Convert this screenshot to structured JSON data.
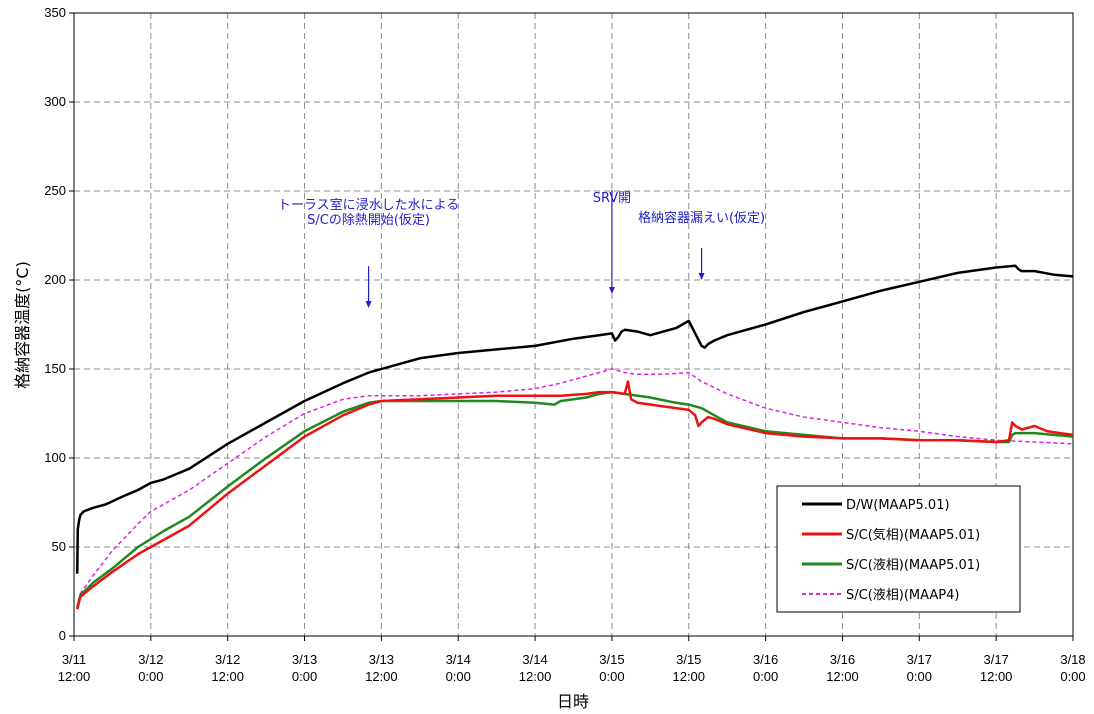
{
  "chart_data": {
    "type": "line",
    "title": "",
    "xlabel": "日時",
    "ylabel": "格納容器温度(°C)",
    "ylim": [
      0,
      350
    ],
    "yticks": [
      0,
      50,
      100,
      150,
      200,
      250,
      300,
      350
    ],
    "xlim_hours": [
      0,
      156
    ],
    "xticks": [
      {
        "line1": "3/11",
        "line2": "12:00"
      },
      {
        "line1": "3/12",
        "line2": "0:00"
      },
      {
        "line1": "3/12",
        "line2": "12:00"
      },
      {
        "line1": "3/13",
        "line2": "0:00"
      },
      {
        "line1": "3/13",
        "line2": "12:00"
      },
      {
        "line1": "3/14",
        "line2": "0:00"
      },
      {
        "line1": "3/14",
        "line2": "12:00"
      },
      {
        "line1": "3/15",
        "line2": "0:00"
      },
      {
        "line1": "3/15",
        "line2": "12:00"
      },
      {
        "line1": "3/16",
        "line2": "0:00"
      },
      {
        "line1": "3/16",
        "line2": "12:00"
      },
      {
        "line1": "3/17",
        "line2": "0:00"
      },
      {
        "line1": "3/17",
        "line2": "12:00"
      },
      {
        "line1": "3/18",
        "line2": "0:00"
      }
    ],
    "grid": true,
    "legend_position": "bottom-right",
    "series": [
      {
        "name": "D/W(MAAP5.01)",
        "color": "#000000",
        "style": "solid",
        "x": [
          0.5,
          0.6,
          0.8,
          1,
          1.5,
          3,
          5,
          8,
          10,
          12,
          14,
          16,
          18,
          24,
          30,
          36,
          42,
          46,
          50,
          54,
          60,
          66,
          72,
          78,
          80,
          82,
          84,
          84.5,
          85,
          85.5,
          86,
          88,
          90,
          92,
          94,
          96,
          98,
          98.5,
          99,
          100,
          102,
          108,
          114,
          120,
          126,
          132,
          138,
          144,
          147,
          147.5,
          148,
          150,
          153,
          156
        ],
        "y": [
          35,
          60,
          65,
          68,
          70,
          72,
          74,
          79,
          82,
          86,
          88,
          91,
          94,
          108,
          120,
          132,
          142,
          148,
          152,
          156,
          159,
          161,
          163,
          167,
          168,
          169,
          170,
          166,
          168,
          171,
          172,
          171,
          169,
          171,
          173,
          177,
          163,
          162,
          164,
          166,
          169,
          175,
          182,
          188,
          194,
          199,
          204,
          207,
          208,
          206,
          205,
          205,
          203,
          202
        ]
      },
      {
        "name": "S/C(気相)(MAAP5.01)",
        "color": "#ee1111",
        "style": "solid",
        "x": [
          0.5,
          1,
          3,
          6,
          10,
          14,
          18,
          24,
          30,
          36,
          42,
          46,
          48,
          54,
          60,
          66,
          72,
          76,
          80,
          82,
          84,
          86,
          86.5,
          87,
          88,
          92,
          96,
          97,
          97.5,
          98,
          99,
          100,
          102,
          108,
          114,
          120,
          126,
          132,
          138,
          144,
          146,
          146.5,
          147,
          148,
          150,
          152,
          154,
          156
        ],
        "y": [
          15,
          22,
          28,
          36,
          46,
          54,
          62,
          80,
          96,
          112,
          124,
          130,
          132,
          133,
          134,
          135,
          135,
          135,
          136,
          137,
          137,
          136,
          143,
          133,
          131,
          129,
          127,
          124,
          118,
          120,
          123,
          122,
          119,
          114,
          112,
          111,
          111,
          110,
          110,
          109,
          110,
          120,
          118,
          116,
          118,
          115,
          114,
          113
        ]
      },
      {
        "name": "S/C(液相)(MAAP5.01)",
        "color": "#1e8a1e",
        "style": "solid",
        "x": [
          0.5,
          1,
          3,
          6,
          10,
          14,
          18,
          24,
          30,
          36,
          42,
          46,
          48,
          54,
          60,
          66,
          72,
          75,
          76,
          80,
          82,
          84,
          86,
          90,
          94,
          96,
          98,
          100,
          102,
          108,
          114,
          120,
          126,
          132,
          138,
          144,
          146,
          146.5,
          147,
          150,
          153,
          156
        ],
        "y": [
          16,
          23,
          30,
          38,
          50,
          59,
          67,
          84,
          100,
          115,
          126,
          131,
          132,
          132,
          132,
          132,
          131,
          130,
          132,
          134,
          136,
          137,
          136,
          134,
          131,
          130,
          128,
          124,
          120,
          115,
          113,
          111,
          111,
          110,
          110,
          109,
          109,
          113,
          114,
          114,
          113,
          112
        ]
      },
      {
        "name": "S/C(液相)(MAAP4)",
        "color": "#e020e0",
        "style": "dashed",
        "x": [
          0.5,
          1,
          3,
          6,
          10,
          12,
          14,
          18,
          24,
          30,
          36,
          42,
          46,
          48,
          54,
          60,
          66,
          72,
          76,
          80,
          82,
          84,
          86,
          88,
          92,
          96,
          98,
          102,
          108,
          114,
          120,
          126,
          132,
          138,
          144,
          150,
          156
        ],
        "y": [
          16,
          24,
          34,
          48,
          63,
          70,
          74,
          82,
          97,
          112,
          125,
          133,
          135,
          135,
          135,
          136,
          137,
          139,
          142,
          146,
          148,
          150,
          148,
          147,
          147,
          148,
          143,
          136,
          128,
          123,
          120,
          117,
          115,
          112,
          110,
          109,
          108
        ]
      }
    ],
    "annotations": [
      {
        "lines": [
          "トーラス室に浸水した水による",
          "S/Cの除熱開始(仮定)"
        ],
        "hour": 46
      },
      {
        "lines": [
          "SRV開"
        ],
        "hour": 84
      },
      {
        "lines": [
          "格納容器漏えい(仮定)"
        ],
        "hour": 98
      }
    ]
  }
}
